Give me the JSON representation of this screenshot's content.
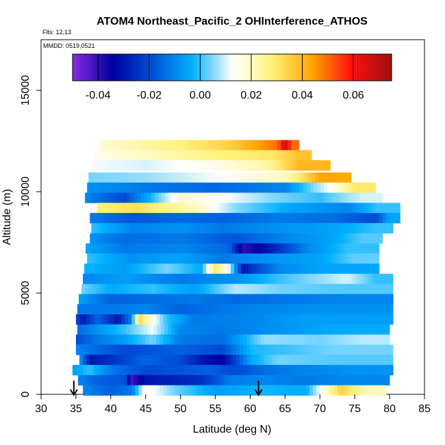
{
  "chart_data": {
    "type": "heatmap",
    "title": "ATOM4 Northeast_Pacific_2 OHInterference_ATHOS",
    "notes": [
      "Flts: 12,13",
      "MMDD: 0519,0521"
    ],
    "xlabel": "Latitude (deg N)",
    "ylabel": "Altitude (m)",
    "xlim": [
      30,
      85
    ],
    "ylim": [
      0,
      17500
    ],
    "x_ticks": [
      30,
      35,
      40,
      45,
      50,
      55,
      60,
      65,
      70,
      75,
      80,
      85
    ],
    "y_ticks": [
      0,
      5000,
      10000,
      15000
    ],
    "colorbar": {
      "range": [
        -0.05,
        0.075
      ],
      "ticks": [
        -0.04,
        -0.02,
        0.0,
        0.02,
        0.04,
        0.06
      ],
      "tick_labels": [
        "-0.04",
        "-0.02",
        "0.00",
        "0.02",
        "0.04",
        "0.06"
      ],
      "colors": [
        "#8a2be2",
        "#0000a0",
        "#0050d8",
        "#00b0ff",
        "#ffffff",
        "#fff27a",
        "#ffa500",
        "#ff1010",
        "#9b1010"
      ]
    },
    "arrows_at_latitude": [
      34.7,
      61.2
    ],
    "bands": [
      {
        "alt": 12300,
        "x0": 38.4,
        "x1": 67.0,
        "segs": [
          [
            38.4,
            0.018
          ],
          [
            50,
            0.028
          ],
          [
            57,
            0.035
          ],
          [
            64,
            0.05
          ],
          [
            65,
            0.068
          ],
          [
            66,
            0.05
          ]
        ]
      },
      {
        "alt": 11800,
        "x0": 37.7,
        "x1": 68.8,
        "segs": [
          [
            37.7,
            0.015
          ],
          [
            46,
            0.02
          ],
          [
            56,
            0.028
          ],
          [
            63,
            0.03
          ],
          [
            67,
            0.038
          ]
        ]
      },
      {
        "alt": 11300,
        "x0": 37.2,
        "x1": 71.5,
        "segs": [
          [
            37.2,
            0.012
          ],
          [
            45,
            0.01
          ],
          [
            55,
            0.015
          ],
          [
            62,
            0.022
          ],
          [
            67,
            0.04
          ]
        ]
      },
      {
        "alt": 10700,
        "x0": 36.8,
        "x1": 74.5,
        "segs": [
          [
            36.8,
            0.004
          ],
          [
            45,
            0.006
          ],
          [
            55,
            0.012
          ],
          [
            65,
            0.02
          ],
          [
            70,
            0.043
          ]
        ]
      },
      {
        "alt": 10200,
        "x0": 36.6,
        "x1": 78.0,
        "segs": [
          [
            36.6,
            -0.008
          ],
          [
            45,
            -0.012
          ],
          [
            55,
            -0.015
          ],
          [
            65,
            -0.01
          ],
          [
            72,
            0.015
          ],
          [
            75,
            0.03
          ]
        ]
      },
      {
        "alt": 9700,
        "x0": 36.3,
        "x1": 79.0,
        "segs": [
          [
            36.3,
            -0.01
          ],
          [
            42,
            -0.02
          ],
          [
            50,
            0.018
          ],
          [
            57,
            0.012
          ],
          [
            63,
            0.005
          ],
          [
            70,
            0.0
          ],
          [
            76,
            0.01
          ]
        ]
      },
      {
        "alt": 9200,
        "x0": 38.0,
        "x1": 81.5,
        "segs": [
          [
            38.0,
            0.028
          ],
          [
            44,
            0.032
          ],
          [
            52,
            0.02
          ],
          [
            58,
            0.005
          ],
          [
            66,
            -0.005
          ],
          [
            74,
            -0.01
          ],
          [
            78,
            0.0
          ]
        ]
      },
      {
        "alt": 8700,
        "x0": 37.0,
        "x1": 81.5,
        "segs": [
          [
            37.0,
            -0.012
          ],
          [
            43,
            -0.018
          ],
          [
            50,
            -0.015
          ],
          [
            56,
            -0.016
          ],
          [
            64,
            -0.012
          ],
          [
            72,
            -0.014
          ],
          [
            78,
            -0.02
          ],
          [
            80,
            -0.005
          ]
        ]
      },
      {
        "alt": 8200,
        "x0": 37.2,
        "x1": 80.5,
        "segs": [
          [
            37.2,
            0.0
          ],
          [
            43,
            -0.01
          ],
          [
            50,
            -0.008
          ],
          [
            56,
            -0.012
          ],
          [
            64,
            -0.008
          ],
          [
            72,
            -0.005
          ],
          [
            78,
            0.0
          ]
        ]
      },
      {
        "alt": 7700,
        "x0": 37.0,
        "x1": 79.0,
        "segs": [
          [
            37.0,
            -0.008
          ],
          [
            42,
            -0.014
          ],
          [
            50,
            -0.012
          ],
          [
            58,
            -0.018
          ],
          [
            65,
            -0.01
          ],
          [
            72,
            -0.005
          ],
          [
            76,
            0.002
          ]
        ]
      },
      {
        "alt": 7200,
        "x0": 36.4,
        "x1": 78.5,
        "segs": [
          [
            36.4,
            -0.005
          ],
          [
            42,
            -0.012
          ],
          [
            50,
            -0.01
          ],
          [
            57,
            -0.015
          ],
          [
            59,
            -0.04
          ],
          [
            61,
            -0.035
          ],
          [
            64,
            -0.025
          ],
          [
            68,
            -0.01
          ],
          [
            74,
            0.0
          ]
        ]
      },
      {
        "alt": 6700,
        "x0": 36.6,
        "x1": 78.5,
        "segs": [
          [
            36.6,
            0.0
          ],
          [
            43,
            -0.008
          ],
          [
            50,
            -0.005
          ],
          [
            56,
            -0.012
          ],
          [
            62,
            -0.008
          ],
          [
            70,
            -0.005
          ],
          [
            75,
            0.003
          ]
        ]
      },
      {
        "alt": 6200,
        "x0": 36.2,
        "x1": 78.5,
        "segs": [
          [
            36.2,
            -0.003
          ],
          [
            42,
            -0.006
          ],
          [
            48,
            0.004
          ],
          [
            53,
            -0.004
          ],
          [
            55,
            0.03
          ],
          [
            57,
            0.01
          ],
          [
            59,
            -0.03
          ],
          [
            61,
            -0.02
          ],
          [
            64,
            -0.01
          ],
          [
            70,
            -0.005
          ]
        ]
      },
      {
        "alt": 5700,
        "x0": 36.0,
        "x1": 80.5,
        "segs": [
          [
            36.0,
            -0.01
          ],
          [
            42,
            -0.006
          ],
          [
            50,
            -0.012
          ],
          [
            58,
            -0.008
          ],
          [
            64,
            0.0
          ],
          [
            70,
            0.006
          ],
          [
            74,
            0.01
          ],
          [
            78,
            0.0
          ]
        ]
      },
      {
        "alt": 5200,
        "x0": 35.8,
        "x1": 80.5,
        "segs": [
          [
            35.8,
            0.004
          ],
          [
            40,
            -0.004
          ],
          [
            46,
            0.0
          ],
          [
            52,
            -0.006
          ],
          [
            58,
            0.008
          ],
          [
            64,
            0.004
          ],
          [
            72,
            0.002
          ]
        ]
      },
      {
        "alt": 4700,
        "x0": 35.4,
        "x1": 80.5,
        "segs": [
          [
            35.4,
            -0.005
          ],
          [
            40,
            -0.016
          ],
          [
            46,
            -0.014
          ],
          [
            52,
            -0.012
          ],
          [
            58,
            -0.015
          ],
          [
            66,
            -0.012
          ],
          [
            74,
            -0.01
          ]
        ]
      },
      {
        "alt": 4200,
        "x0": 35.2,
        "x1": 80.5,
        "segs": [
          [
            35.2,
            -0.012
          ],
          [
            40,
            -0.012
          ],
          [
            45,
            -0.01
          ],
          [
            50,
            -0.016
          ],
          [
            56,
            -0.012
          ],
          [
            62,
            -0.01
          ],
          [
            70,
            -0.008
          ]
        ]
      },
      {
        "alt": 3700,
        "x0": 35.0,
        "x1": 80.5,
        "segs": [
          [
            35.0,
            -0.02
          ],
          [
            36,
            -0.03
          ],
          [
            38,
            -0.015
          ],
          [
            41,
            -0.03
          ],
          [
            43,
            -0.01
          ],
          [
            44,
            0.035
          ],
          [
            46,
            0.015
          ],
          [
            48,
            0.0
          ],
          [
            52,
            -0.012
          ],
          [
            60,
            -0.01
          ],
          [
            68,
            -0.006
          ]
        ]
      },
      {
        "alt": 3200,
        "x0": 35.2,
        "x1": 80.0,
        "segs": [
          [
            35.2,
            -0.015
          ],
          [
            38,
            -0.008
          ],
          [
            42,
            0.0
          ],
          [
            46,
            0.012
          ],
          [
            50,
            -0.01
          ],
          [
            56,
            -0.012
          ],
          [
            64,
            -0.008
          ],
          [
            72,
            -0.004
          ]
        ]
      },
      {
        "alt": 2700,
        "x0": 35.0,
        "x1": 80.0,
        "segs": [
          [
            35.0,
            -0.02
          ],
          [
            38,
            -0.012
          ],
          [
            42,
            -0.006
          ],
          [
            46,
            0.004
          ],
          [
            50,
            -0.012
          ],
          [
            56,
            -0.014
          ],
          [
            62,
            0.006
          ],
          [
            70,
            0.004
          ],
          [
            76,
            0.008
          ]
        ]
      },
      {
        "alt": 2200,
        "x0": 35.0,
        "x1": 80.5,
        "segs": [
          [
            35.0,
            -0.01
          ],
          [
            38,
            -0.015
          ],
          [
            42,
            -0.02
          ],
          [
            46,
            -0.018
          ],
          [
            50,
            -0.016
          ],
          [
            56,
            -0.02
          ],
          [
            60,
            -0.002
          ],
          [
            64,
            0.0
          ],
          [
            72,
            0.004
          ]
        ]
      },
      {
        "alt": 1700,
        "x0": 35.5,
        "x1": 80.5,
        "segs": [
          [
            35.5,
            -0.005
          ],
          [
            37,
            -0.03
          ],
          [
            40,
            -0.025
          ],
          [
            45,
            -0.015
          ],
          [
            50,
            -0.02
          ],
          [
            53,
            -0.03
          ],
          [
            56,
            -0.035
          ],
          [
            60,
            -0.005
          ],
          [
            64,
            0.004
          ],
          [
            72,
            0.002
          ]
        ]
      },
      {
        "alt": 1200,
        "x0": 34.5,
        "x1": 80.5,
        "segs": [
          [
            34.5,
            -0.006
          ],
          [
            37,
            0.0
          ],
          [
            40,
            -0.012
          ],
          [
            45,
            -0.02
          ],
          [
            50,
            -0.018
          ],
          [
            54,
            -0.016
          ],
          [
            58,
            -0.02
          ],
          [
            62,
            -0.014
          ],
          [
            68,
            -0.01
          ],
          [
            74,
            -0.008
          ]
        ]
      },
      {
        "alt": 700,
        "x0": 35.3,
        "x1": 80.0,
        "segs": [
          [
            35.3,
            -0.01
          ],
          [
            38,
            -0.016
          ],
          [
            42,
            -0.018
          ],
          [
            43,
            -0.042
          ],
          [
            45,
            -0.03
          ],
          [
            49,
            -0.028
          ],
          [
            53,
            -0.025
          ],
          [
            57,
            -0.012
          ],
          [
            62,
            -0.01
          ],
          [
            68,
            -0.012
          ],
          [
            74,
            -0.01
          ]
        ]
      },
      {
        "alt": 200,
        "x0": 36.0,
        "x1": 79.5,
        "segs": [
          [
            36.0,
            -0.01
          ],
          [
            40,
            -0.016
          ],
          [
            43,
            -0.012
          ],
          [
            45,
            0.016
          ],
          [
            49,
            0.004
          ],
          [
            55,
            -0.006
          ],
          [
            62,
            -0.002
          ],
          [
            68,
            -0.004
          ],
          [
            73,
            0.035
          ],
          [
            77,
            0.02
          ]
        ]
      }
    ]
  }
}
